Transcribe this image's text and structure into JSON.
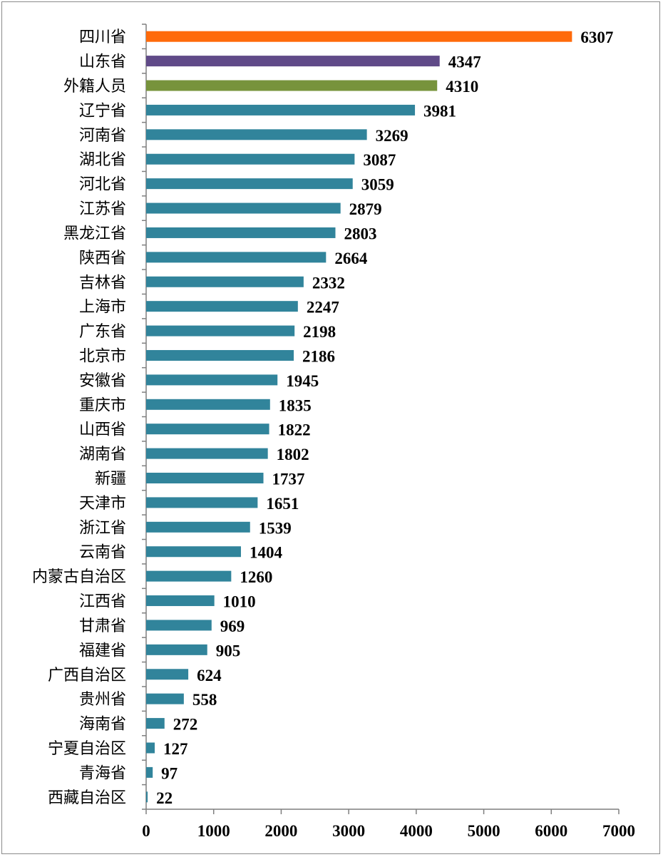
{
  "chart_data": {
    "type": "bar",
    "orientation": "horizontal",
    "title": "",
    "xlabel": "",
    "ylabel": "",
    "xlim": [
      0,
      7000
    ],
    "xticks": [
      0,
      1000,
      2000,
      3000,
      4000,
      5000,
      6000,
      7000
    ],
    "grid": false,
    "categories": [
      "四川省",
      "山东省",
      "外籍人员",
      "辽宁省",
      "河南省",
      "湖北省",
      "河北省",
      "江苏省",
      "黑龙江省",
      "陕西省",
      "吉林省",
      "上海市",
      "广东省",
      "北京市",
      "安徽省",
      "重庆市",
      "山西省",
      "湖南省",
      "新疆",
      "天津市",
      "浙江省",
      "云南省",
      "内蒙古自治区",
      "江西省",
      "甘肃省",
      "福建省",
      "广西自治区",
      "贵州省",
      "海南省",
      "宁夏自治区",
      "青海省",
      "西藏自治区"
    ],
    "values": [
      6307,
      4347,
      4310,
      3981,
      3269,
      3087,
      3059,
      2879,
      2803,
      2664,
      2332,
      2247,
      2198,
      2186,
      1945,
      1835,
      1822,
      1802,
      1737,
      1651,
      1539,
      1404,
      1260,
      1010,
      969,
      905,
      624,
      558,
      272,
      127,
      97,
      22
    ],
    "colors": {
      "四川省": "#ff6a0a",
      "山东省": "#604a88",
      "外籍人员": "#77933c",
      "default": "#31849b"
    }
  }
}
